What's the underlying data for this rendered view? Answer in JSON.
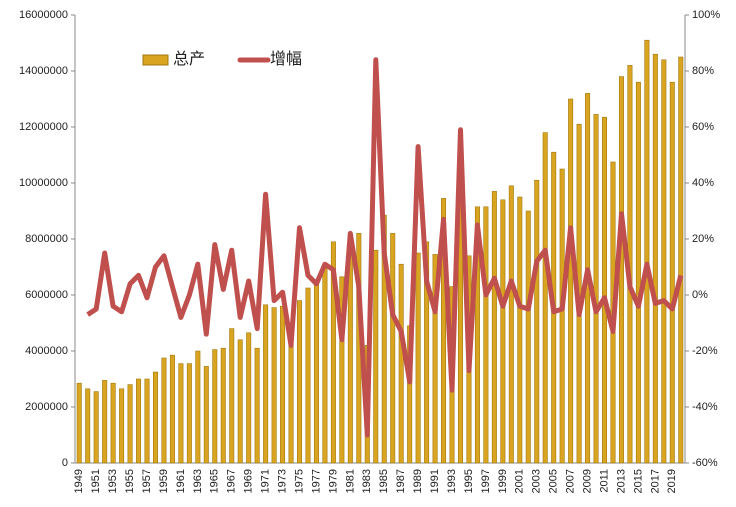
{
  "chart_data": {
    "type": "bar_line",
    "categories": [
      "1949",
      null,
      "1951",
      null,
      "1953",
      null,
      "1955",
      null,
      "1957",
      null,
      "1959",
      null,
      "1961",
      null,
      "1963",
      null,
      "1965",
      null,
      "1967",
      null,
      "1969",
      null,
      "1971",
      null,
      "1973",
      null,
      "1975",
      null,
      "1977",
      null,
      "1979",
      null,
      "1981",
      null,
      "1983",
      null,
      "1985",
      null,
      "1987",
      null,
      "1989",
      null,
      "1991",
      null,
      "1993",
      null,
      "1995",
      null,
      "1997",
      null,
      "1999",
      null,
      "2001",
      null,
      "2003",
      null,
      "2005",
      null,
      "2007",
      null,
      "2009",
      null,
      "2011",
      null,
      "2013",
      null,
      "2015",
      null,
      "2017",
      null,
      "2019",
      null
    ],
    "series": [
      {
        "name": "总产",
        "color": "#d9a521",
        "values": [
          2850000,
          2650000,
          2550000,
          2950000,
          2850000,
          2650000,
          2800000,
          3000000,
          3000000,
          3250000,
          3750000,
          3850000,
          3550000,
          3550000,
          4000000,
          3450000,
          4050000,
          4100000,
          4800000,
          4400000,
          4650000,
          4100000,
          5650000,
          5550000,
          5600000,
          5000000,
          5800000,
          6250000,
          6450000,
          6950000,
          7900000,
          6650000,
          8150000,
          8200000,
          4200000,
          7600000,
          8850000,
          8200000,
          7100000,
          4900000,
          7500000,
          7900000,
          7450000,
          9450000,
          6300000,
          10000000,
          7400000,
          9150000,
          9150000,
          9700000,
          9400000,
          9900000,
          9500000,
          9000000,
          10100000,
          11800000,
          11100000,
          10500000,
          13000000,
          12100000,
          13200000,
          12450000,
          12350000,
          10750000,
          13800000,
          14200000,
          13600000,
          15100000,
          14600000,
          14400000,
          13600000,
          14500000
        ]
      },
      {
        "name": "增幅",
        "color": "#c0504d",
        "axis": "y2",
        "values": [
          null,
          -7,
          -5,
          15,
          -4,
          -6,
          4,
          7,
          -1,
          10,
          14,
          3,
          -8,
          0,
          11,
          -14,
          18,
          2,
          16,
          -8,
          5,
          -12,
          36,
          -2,
          1,
          -18,
          24,
          7,
          4,
          11,
          9,
          -16,
          22,
          3,
          -50,
          84,
          15,
          -7,
          -13,
          -31,
          53,
          5,
          -6,
          27,
          -34,
          59,
          -27,
          25,
          0,
          6,
          -4,
          5,
          -4,
          -5,
          12,
          16,
          -6,
          -5,
          24,
          -7,
          9,
          -6,
          -1,
          -13,
          29,
          3,
          -4,
          11,
          -3,
          -2,
          -5,
          7
        ]
      }
    ],
    "ylim": [
      0,
      16000000
    ],
    "yticks": [
      0,
      2000000,
      4000000,
      6000000,
      8000000,
      10000000,
      12000000,
      14000000,
      16000000
    ],
    "y2lim": [
      -60,
      100
    ],
    "y2ticks": [
      {
        "value": -60,
        "label": "-60%"
      },
      {
        "value": -40,
        "label": "-40%"
      },
      {
        "value": -20,
        "label": "-20%"
      },
      {
        "value": 0,
        "label": "0%"
      },
      {
        "value": 20,
        "label": "20%"
      },
      {
        "value": 40,
        "label": "40%"
      },
      {
        "value": 60,
        "label": "60%"
      },
      {
        "value": 80,
        "label": "80%"
      },
      {
        "value": 100,
        "label": "100%"
      }
    ],
    "legend": "top-left"
  }
}
